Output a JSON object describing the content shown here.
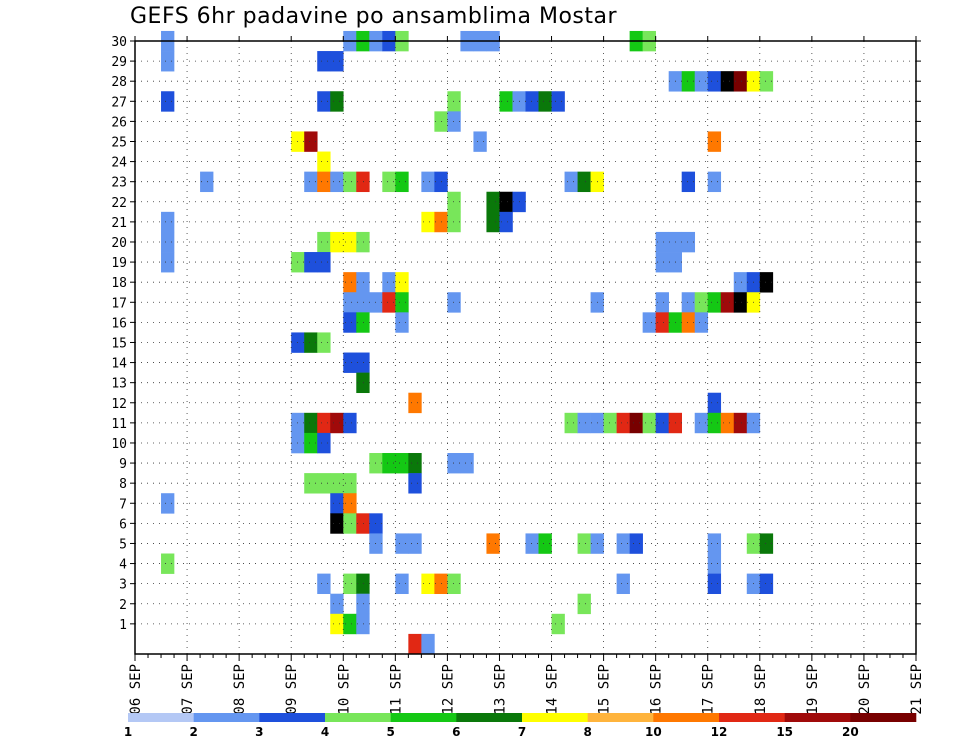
{
  "chart_data": {
    "type": "heatmap",
    "title": "GEFS 6hr padavine po ansamblima Mostar",
    "xlabel": "",
    "ylabel": "",
    "x_tick_labels": [
      "06 SEP",
      "07 SEP",
      "08 SEP",
      "09 SEP",
      "10 SEP",
      "11 SEP",
      "12 SEP",
      "13 SEP",
      "14 SEP",
      "15 SEP",
      "16 SEP",
      "17 SEP",
      "18 SEP",
      "19 SEP",
      "20 SEP",
      "21 SEP"
    ],
    "y_tick_labels": [
      "1",
      "2",
      "3",
      "4",
      "5",
      "6",
      "7",
      "8",
      "9",
      "10",
      "11",
      "12",
      "13",
      "14",
      "15",
      "16",
      "17",
      "18",
      "19",
      "20",
      "21",
      "22",
      "23",
      "24",
      "25",
      "26",
      "27",
      "28",
      "29",
      "30"
    ],
    "x_range": [
      0,
      60
    ],
    "y_range": [
      0,
      30
    ],
    "grid": true,
    "legend": {
      "placement": "bottom",
      "labels": [
        "1",
        "2",
        "3",
        "4",
        "5",
        "6",
        "7",
        "8",
        "10",
        "12",
        "15",
        "20"
      ],
      "colors": [
        "#b4c8f5",
        "#6496f0",
        "#1e50dc",
        "#78e65a",
        "#14c814",
        "#0a780a",
        "#ffff00",
        "#ffb43c",
        "#ff7800",
        "#e12814",
        "#a00a0a",
        "#780000"
      ]
    },
    "cells": [
      [
        30,
        2,
        1
      ],
      [
        30,
        16,
        1
      ],
      [
        30,
        17,
        4
      ],
      [
        30,
        18,
        1
      ],
      [
        30,
        19,
        2
      ],
      [
        30,
        20,
        3
      ],
      [
        30,
        25,
        1
      ],
      [
        30,
        26,
        1
      ],
      [
        30,
        27,
        1
      ],
      [
        30,
        38,
        4
      ],
      [
        30,
        39,
        3
      ],
      [
        29,
        2,
        1
      ],
      [
        29,
        14,
        2
      ],
      [
        29,
        15,
        2
      ],
      [
        28,
        41,
        1
      ],
      [
        28,
        42,
        4
      ],
      [
        28,
        43,
        1
      ],
      [
        28,
        44,
        2
      ],
      [
        28,
        45,
        12
      ],
      [
        28,
        46,
        11
      ],
      [
        28,
        47,
        6
      ],
      [
        28,
        48,
        3
      ],
      [
        27,
        2,
        2
      ],
      [
        27,
        14,
        2
      ],
      [
        27,
        15,
        5
      ],
      [
        27,
        24,
        3
      ],
      [
        27,
        28,
        4
      ],
      [
        27,
        29,
        1
      ],
      [
        27,
        30,
        2
      ],
      [
        27,
        31,
        5
      ],
      [
        27,
        32,
        2
      ],
      [
        26,
        23,
        3
      ],
      [
        26,
        24,
        1
      ],
      [
        25,
        12,
        6
      ],
      [
        25,
        13,
        10
      ],
      [
        25,
        26,
        1
      ],
      [
        25,
        44,
        8
      ],
      [
        24,
        14,
        6
      ],
      [
        23,
        5,
        1
      ],
      [
        23,
        13,
        1
      ],
      [
        23,
        14,
        8
      ],
      [
        23,
        15,
        1
      ],
      [
        23,
        16,
        3
      ],
      [
        23,
        17,
        9
      ],
      [
        23,
        19,
        3
      ],
      [
        23,
        20,
        4
      ],
      [
        23,
        22,
        1
      ],
      [
        23,
        23,
        2
      ],
      [
        23,
        33,
        1
      ],
      [
        23,
        34,
        5
      ],
      [
        23,
        35,
        6
      ],
      [
        23,
        42,
        2
      ],
      [
        23,
        44,
        1
      ],
      [
        22,
        24,
        3
      ],
      [
        22,
        27,
        5
      ],
      [
        22,
        28,
        12
      ],
      [
        22,
        29,
        2
      ],
      [
        21,
        2,
        1
      ],
      [
        21,
        22,
        6
      ],
      [
        21,
        23,
        8
      ],
      [
        21,
        24,
        3
      ],
      [
        21,
        27,
        5
      ],
      [
        21,
        28,
        2
      ],
      [
        20,
        2,
        1
      ],
      [
        20,
        14,
        3
      ],
      [
        20,
        15,
        6
      ],
      [
        20,
        16,
        6
      ],
      [
        20,
        17,
        3
      ],
      [
        20,
        40,
        1
      ],
      [
        20,
        41,
        1
      ],
      [
        20,
        42,
        1
      ],
      [
        19,
        2,
        1
      ],
      [
        19,
        12,
        3
      ],
      [
        19,
        13,
        2
      ],
      [
        19,
        14,
        2
      ],
      [
        19,
        40,
        1
      ],
      [
        19,
        41,
        1
      ],
      [
        18,
        16,
        8
      ],
      [
        18,
        17,
        1
      ],
      [
        18,
        19,
        1
      ],
      [
        18,
        20,
        6
      ],
      [
        18,
        46,
        1
      ],
      [
        18,
        47,
        2
      ],
      [
        18,
        48,
        12
      ],
      [
        17,
        16,
        1
      ],
      [
        17,
        17,
        1
      ],
      [
        17,
        18,
        1
      ],
      [
        17,
        19,
        9
      ],
      [
        17,
        20,
        4
      ],
      [
        17,
        24,
        1
      ],
      [
        17,
        35,
        1
      ],
      [
        17,
        40,
        1
      ],
      [
        17,
        42,
        1
      ],
      [
        17,
        43,
        3
      ],
      [
        17,
        44,
        4
      ],
      [
        17,
        45,
        10
      ],
      [
        17,
        46,
        12
      ],
      [
        17,
        47,
        6
      ],
      [
        16,
        16,
        2
      ],
      [
        16,
        17,
        4
      ],
      [
        16,
        20,
        1
      ],
      [
        16,
        39,
        1
      ],
      [
        16,
        40,
        9
      ],
      [
        16,
        41,
        4
      ],
      [
        16,
        42,
        8
      ],
      [
        16,
        43,
        1
      ],
      [
        15,
        12,
        2
      ],
      [
        15,
        13,
        5
      ],
      [
        15,
        14,
        3
      ],
      [
        14,
        16,
        2
      ],
      [
        14,
        17,
        2
      ],
      [
        13,
        17,
        5
      ],
      [
        12,
        21,
        8
      ],
      [
        12,
        44,
        2
      ],
      [
        11,
        12,
        1
      ],
      [
        11,
        13,
        5
      ],
      [
        11,
        14,
        9
      ],
      [
        11,
        15,
        10
      ],
      [
        11,
        16,
        2
      ],
      [
        11,
        33,
        3
      ],
      [
        11,
        34,
        1
      ],
      [
        11,
        35,
        1
      ],
      [
        11,
        36,
        3
      ],
      [
        11,
        37,
        9
      ],
      [
        11,
        38,
        11
      ],
      [
        11,
        39,
        3
      ],
      [
        11,
        40,
        2
      ],
      [
        11,
        41,
        9
      ],
      [
        11,
        43,
        1
      ],
      [
        11,
        44,
        4
      ],
      [
        11,
        45,
        8
      ],
      [
        11,
        46,
        10
      ],
      [
        11,
        47,
        1
      ],
      [
        10,
        12,
        1
      ],
      [
        10,
        13,
        4
      ],
      [
        10,
        14,
        2
      ],
      [
        9,
        18,
        3
      ],
      [
        9,
        19,
        4
      ],
      [
        9,
        20,
        4
      ],
      [
        9,
        21,
        5
      ],
      [
        9,
        24,
        1
      ],
      [
        9,
        25,
        1
      ],
      [
        8,
        13,
        3
      ],
      [
        8,
        14,
        3
      ],
      [
        8,
        15,
        3
      ],
      [
        8,
        16,
        3
      ],
      [
        8,
        21,
        2
      ],
      [
        7,
        2,
        1
      ],
      [
        7,
        15,
        2
      ],
      [
        7,
        16,
        8
      ],
      [
        6,
        15,
        12
      ],
      [
        6,
        16,
        3
      ],
      [
        6,
        17,
        9
      ],
      [
        6,
        18,
        2
      ],
      [
        5,
        18,
        1
      ],
      [
        5,
        20,
        1
      ],
      [
        5,
        21,
        1
      ],
      [
        5,
        27,
        8
      ],
      [
        5,
        30,
        1
      ],
      [
        5,
        31,
        4
      ],
      [
        5,
        34,
        3
      ],
      [
        5,
        35,
        1
      ],
      [
        5,
        37,
        1
      ],
      [
        5,
        38,
        2
      ],
      [
        5,
        44,
        1
      ],
      [
        5,
        47,
        3
      ],
      [
        5,
        48,
        5
      ],
      [
        4,
        2,
        3
      ],
      [
        4,
        44,
        1
      ],
      [
        3,
        14,
        1
      ],
      [
        3,
        16,
        3
      ],
      [
        3,
        17,
        5
      ],
      [
        3,
        20,
        1
      ],
      [
        3,
        22,
        6
      ],
      [
        3,
        23,
        8
      ],
      [
        3,
        24,
        3
      ],
      [
        3,
        37,
        1
      ],
      [
        3,
        44,
        2
      ],
      [
        3,
        47,
        1
      ],
      [
        3,
        48,
        2
      ],
      [
        2,
        15,
        1
      ],
      [
        2,
        17,
        1
      ],
      [
        2,
        34,
        3
      ],
      [
        1,
        15,
        6
      ],
      [
        1,
        16,
        4
      ],
      [
        1,
        17,
        1
      ],
      [
        1,
        32,
        3
      ],
      [
        0,
        21,
        9
      ],
      [
        0,
        22,
        1
      ]
    ]
  }
}
